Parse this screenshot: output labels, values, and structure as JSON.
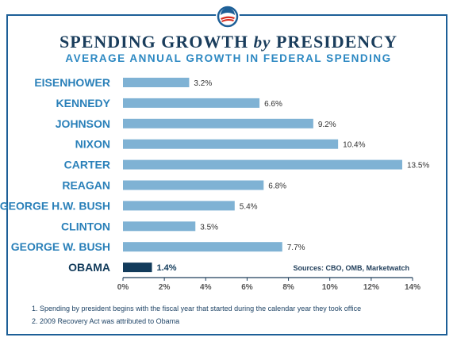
{
  "header": {
    "title_part1": "SPENDING GROWTH",
    "title_by": "by",
    "title_part2": "PRESIDENCY",
    "subtitle": "AVERAGE ANNUAL GROWTH IN FEDERAL SPENDING"
  },
  "source": "Sources: CBO, OMB, Marketwatch",
  "footnotes": [
    "1. Spending by president begins with the fiscal year that started during the calendar year they took office",
    "2. 2009 Recovery Act was attributed to Obama"
  ],
  "colors": {
    "bar": "#7fb2d4",
    "highlight_bar": "#123b5b",
    "frame": "#1d5f97",
    "title": "#1a3d5c",
    "subtitle": "#2c88c2"
  },
  "chart_data": {
    "type": "bar",
    "orientation": "horizontal",
    "title": "SPENDING GROWTH by PRESIDENCY",
    "subtitle": "AVERAGE ANNUAL GROWTH IN FEDERAL SPENDING",
    "categories": [
      "EISENHOWER",
      "KENNEDY",
      "JOHNSON",
      "NIXON",
      "CARTER",
      "REAGAN",
      "GEORGE H.W. BUSH",
      "CLINTON",
      "GEORGE W. BUSH",
      "OBAMA"
    ],
    "values": [
      3.2,
      6.6,
      9.2,
      10.4,
      13.5,
      6.8,
      5.4,
      3.5,
      7.7,
      1.4
    ],
    "value_labels": [
      "3.2%",
      "6.6%",
      "9.2%",
      "10.4%",
      "13.5%",
      "6.8%",
      "5.4%",
      "3.5%",
      "7.7%",
      "1.4%"
    ],
    "highlight": "OBAMA",
    "xlim": [
      0,
      14
    ],
    "xticks": [
      0,
      2,
      4,
      6,
      8,
      10,
      12,
      14
    ],
    "xtick_labels": [
      "0%",
      "2%",
      "4%",
      "6%",
      "8%",
      "10%",
      "12%",
      "14%"
    ],
    "grid": false,
    "legend": "none"
  }
}
